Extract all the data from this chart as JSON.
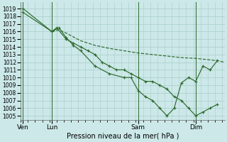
{
  "background_color": "#cce8e8",
  "grid_color": "#aacccc",
  "line_color": "#2d6a2d",
  "title": "Pression niveau de la mer( hPa )",
  "yticks": [
    1005,
    1006,
    1007,
    1008,
    1009,
    1010,
    1011,
    1012,
    1013,
    1014,
    1015,
    1016,
    1017,
    1018,
    1019
  ],
  "ylim": [
    1004.5,
    1019.8
  ],
  "xtick_labels": [
    "Ven",
    "Lun",
    "Sam",
    "Dim"
  ],
  "xtick_positions": [
    0,
    24,
    96,
    144
  ],
  "xlim": [
    -2,
    168
  ],
  "vlines": [
    0,
    24,
    96,
    144
  ],
  "series": [
    {
      "style": "solid",
      "marker": true,
      "x": [
        0,
        24,
        30,
        36,
        42,
        48,
        60,
        72,
        84,
        90,
        96,
        102,
        108,
        114,
        120,
        126,
        132,
        138,
        144,
        150,
        156,
        162
      ],
      "y": [
        1019.0,
        1016.0,
        1016.5,
        1015.2,
        1014.2,
        1013.5,
        1011.5,
        1010.5,
        1010.0,
        1010.0,
        1008.3,
        1007.5,
        1007.0,
        1006.0,
        1005.0,
        1006.0,
        1009.3,
        1010.0,
        1009.5,
        1011.5,
        1011.0,
        1012.2
      ]
    },
    {
      "style": "solid",
      "marker": true,
      "x": [
        0,
        24,
        28,
        36,
        42,
        48,
        54,
        60,
        66,
        72,
        78,
        84,
        90,
        96,
        102,
        108,
        114,
        120,
        126,
        132,
        138,
        144,
        150,
        156,
        162
      ],
      "y": [
        1018.5,
        1016.0,
        1016.5,
        1015.0,
        1014.5,
        1014.0,
        1013.5,
        1013.0,
        1012.0,
        1011.5,
        1011.0,
        1011.0,
        1010.5,
        1010.0,
        1009.5,
        1009.5,
        1009.0,
        1008.5,
        1007.5,
        1007.0,
        1006.0,
        1005.0,
        1005.5,
        1006.0,
        1006.5
      ]
    },
    {
      "style": "dashed",
      "marker": false,
      "x": [
        24,
        30,
        36,
        48,
        60,
        72,
        96,
        120,
        132,
        144,
        156,
        162,
        168
      ],
      "y": [
        1016.0,
        1016.2,
        1015.8,
        1014.8,
        1014.2,
        1013.8,
        1013.2,
        1012.8,
        1012.6,
        1012.5,
        1012.3,
        1012.2,
        1012.0
      ]
    }
  ]
}
